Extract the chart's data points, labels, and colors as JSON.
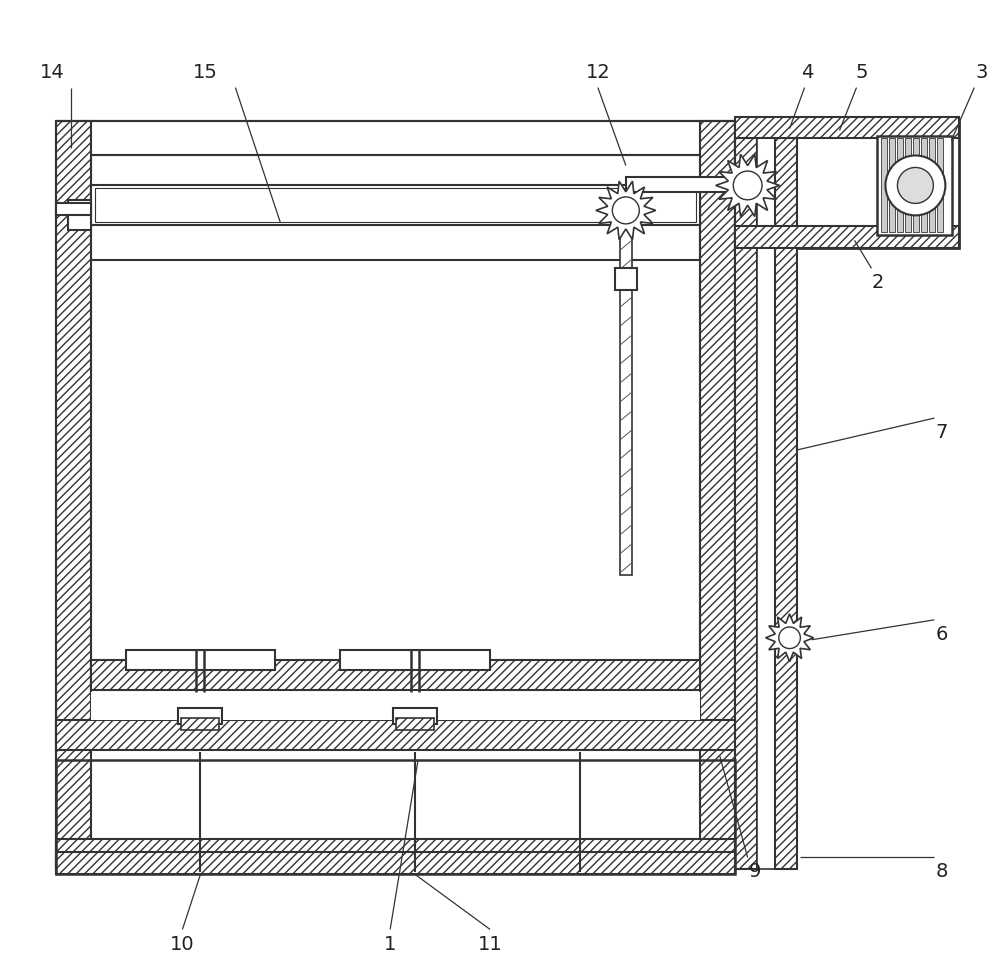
{
  "bg_color": "#ffffff",
  "lc": "#333333",
  "fig_w": 10.0,
  "fig_h": 9.76,
  "dpi": 100,
  "xlim": [
    0,
    1000
  ],
  "ylim": [
    0,
    976
  ]
}
